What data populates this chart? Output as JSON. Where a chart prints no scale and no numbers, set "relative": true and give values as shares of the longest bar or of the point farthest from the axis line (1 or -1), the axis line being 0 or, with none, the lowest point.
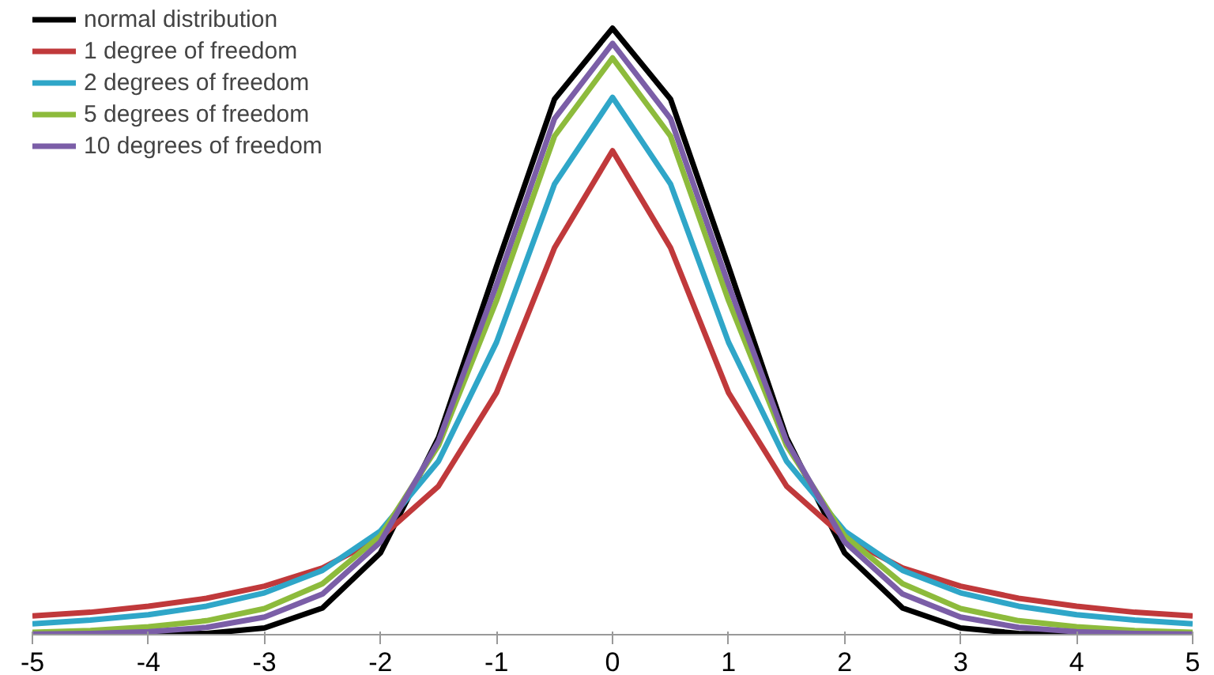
{
  "chart_data": {
    "type": "line",
    "relative": true,
    "x": [
      -5,
      -4.5,
      -4,
      -3.5,
      -3,
      -2.5,
      -2,
      -1.5,
      -1,
      -0.5,
      0,
      0.5,
      1,
      1.5,
      2,
      2.5,
      3,
      3.5,
      4,
      4.5,
      5
    ],
    "xlim": [
      -5,
      5
    ],
    "xticks": [
      -5,
      -4,
      -3,
      -2,
      -1,
      0,
      1,
      2,
      3,
      4,
      5
    ],
    "grid": false,
    "legend": "top left",
    "marker": "none",
    "line_style": "solid",
    "series": [
      {
        "name": "normal distribution",
        "color": "#000000",
        "values": [
          0,
          0,
          0,
          0.002,
          0.011,
          0.044,
          0.135,
          0.325,
          0.607,
          0.883,
          1,
          0.883,
          0.607,
          0.325,
          0.135,
          0.044,
          0.011,
          0.002,
          0,
          0,
          0
        ]
      },
      {
        "name": "1 degree of freedom",
        "color": "#c0393b",
        "values": [
          0.031,
          0.037,
          0.047,
          0.06,
          0.08,
          0.11,
          0.16,
          0.245,
          0.399,
          0.638,
          0.798,
          0.638,
          0.399,
          0.245,
          0.16,
          0.11,
          0.08,
          0.06,
          0.047,
          0.037,
          0.031
        ]
      },
      {
        "name": "2 degrees of freedom",
        "color": "#2fa6c8",
        "values": [
          0.018,
          0.024,
          0.033,
          0.047,
          0.069,
          0.106,
          0.171,
          0.286,
          0.482,
          0.743,
          0.886,
          0.743,
          0.482,
          0.286,
          0.171,
          0.106,
          0.069,
          0.047,
          0.033,
          0.024,
          0.018
        ]
      },
      {
        "name": "5 degrees of freedom",
        "color": "#8dbb3c",
        "values": [
          0.004,
          0.007,
          0.013,
          0.023,
          0.043,
          0.084,
          0.163,
          0.312,
          0.551,
          0.822,
          0.951,
          0.822,
          0.551,
          0.312,
          0.163,
          0.084,
          0.043,
          0.023,
          0.013,
          0.007,
          0.004
        ]
      },
      {
        "name": "10 degrees of freedom",
        "color": "#7b5ea7",
        "values": [
          0.001,
          0.002,
          0.005,
          0.012,
          0.029,
          0.067,
          0.153,
          0.319,
          0.577,
          0.851,
          0.975,
          0.851,
          0.577,
          0.319,
          0.153,
          0.067,
          0.029,
          0.012,
          0.005,
          0.002,
          0.001
        ]
      }
    ]
  }
}
